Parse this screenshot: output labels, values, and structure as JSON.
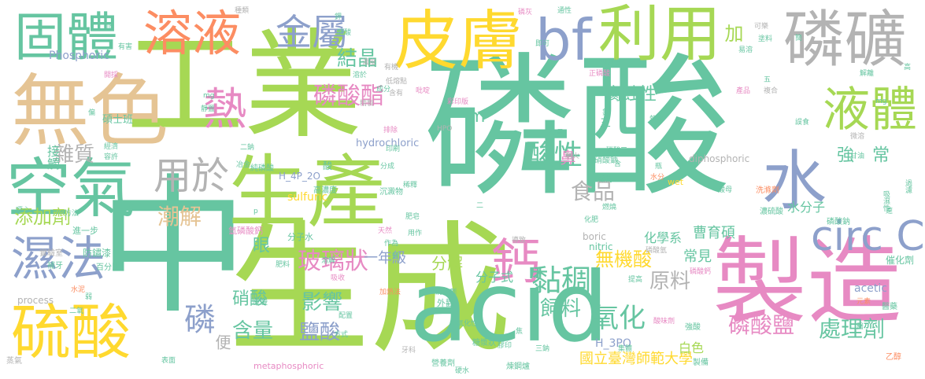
{
  "palette": {
    "teal": "#66c5a1",
    "green": "#a6d854",
    "yellow": "#ffd92f",
    "tan": "#e5c494",
    "gray": "#b3b3b3",
    "blue": "#8da0cb",
    "pink": "#e78ac3",
    "orange": "#fc8d62"
  },
  "words": [
    {
      "text": "磷酸",
      "color": "teal"
    },
    {
      "text": "工業",
      "color": "green"
    },
    {
      "text": "中",
      "color": "teal"
    },
    {
      "text": "生成",
      "color": "green"
    },
    {
      "text": "製造",
      "color": "pink"
    },
    {
      "text": "acid",
      "color": "teal"
    },
    {
      "text": "無色",
      "color": "tan"
    },
    {
      "text": "生產",
      "color": "green"
    },
    {
      "text": "空氣",
      "color": "teal"
    },
    {
      "text": "皮膚",
      "color": "yellow"
    },
    {
      "text": "利用",
      "color": "green"
    },
    {
      "text": "磷礦",
      "color": "gray"
    },
    {
      "text": "固體",
      "color": "teal"
    },
    {
      "text": "溶液",
      "color": "orange"
    },
    {
      "text": "硫酸",
      "color": "yellow"
    },
    {
      "text": "水",
      "color": "blue"
    },
    {
      "text": "熱",
      "color": "pink"
    },
    {
      "text": "bf",
      "color": "blue"
    },
    {
      "text": "金屬",
      "color": "blue"
    },
    {
      "text": "液體",
      "color": "green"
    },
    {
      "text": "用於",
      "color": "gray"
    },
    {
      "text": "濕法",
      "color": "blue"
    },
    {
      "text": "鈣",
      "color": "pink"
    },
    {
      "text": "circ C",
      "color": "blue"
    },
    {
      "text": "酸性",
      "color": "teal"
    },
    {
      "text": "磷酸酯",
      "color": "pink"
    },
    {
      "text": "結晶",
      "color": "teal"
    },
    {
      "text": "黏稠",
      "color": "teal"
    },
    {
      "text": "磷",
      "color": "blue"
    },
    {
      "text": "玻璃狀",
      "color": "pink"
    },
    {
      "text": "氧化",
      "color": "teal"
    },
    {
      "text": "影響",
      "color": "teal"
    },
    {
      "text": "潮解",
      "color": "tan"
    },
    {
      "text": "添加劑",
      "color": "green"
    },
    {
      "text": "雜質",
      "color": "gray"
    },
    {
      "text": "腐蝕性",
      "color": "teal"
    },
    {
      "text": "無機酸",
      "color": "yellow"
    },
    {
      "text": "食品",
      "color": "gray"
    },
    {
      "text": "飼料",
      "color": "teal"
    },
    {
      "text": "原料",
      "color": "gray"
    },
    {
      "text": "磷酸鹽",
      "color": "pink"
    },
    {
      "text": "處理劑",
      "color": "teal"
    },
    {
      "text": "含量",
      "color": "teal"
    },
    {
      "text": "鹽酸",
      "color": "blue"
    },
    {
      "text": "硝酸",
      "color": "teal"
    },
    {
      "text": "分解",
      "color": "green"
    },
    {
      "text": "加",
      "color": "green"
    },
    {
      "text": "m",
      "color": "teal"
    },
    {
      "text": "強",
      "color": "teal"
    },
    {
      "text": "常",
      "color": "teal"
    },
    {
      "text": "鼻",
      "color": "pink"
    },
    {
      "text": "一年級",
      "color": "blue"
    },
    {
      "text": "便",
      "color": "gray"
    },
    {
      "text": "眼",
      "color": "teal"
    },
    {
      "text": "曹育碩",
      "color": "teal"
    },
    {
      "text": "常見",
      "color": "teal"
    },
    {
      "text": "國立臺灣師範大學",
      "color": "yellow"
    },
    {
      "text": "H_3PO",
      "color": "blue"
    },
    {
      "text": "白色",
      "color": "green"
    },
    {
      "text": "化學系",
      "color": "teal"
    },
    {
      "text": "分子式",
      "color": "teal"
    },
    {
      "text": "水分子",
      "color": "teal"
    },
    {
      "text": "接觸",
      "color": "teal"
    },
    {
      "text": "Phosphoric",
      "color": "blue"
    },
    {
      "text": "hydrochloric",
      "color": "blue"
    },
    {
      "text": "sulfuric",
      "color": "yellow"
    },
    {
      "text": "H_4P_2O",
      "color": "blue"
    },
    {
      "text": "diphosphoric",
      "color": "gray"
    },
    {
      "text": "boric",
      "color": "gray"
    },
    {
      "text": "nitric",
      "color": "teal"
    },
    {
      "text": "acetic",
      "color": "blue"
    },
    {
      "text": "process",
      "color": "gray"
    },
    {
      "text": "metaphosphoric",
      "color": "pink"
    },
    {
      "text": "wet",
      "color": "yellow"
    },
    {
      "text": "HPO",
      "color": "gray"
    },
    {
      "text": "硝酸鈉",
      "color": "teal"
    },
    {
      "text": "碩士班",
      "color": "teal"
    },
    {
      "text": "實驗室",
      "color": "gray"
    },
    {
      "text": "防鏽漆",
      "color": "teal"
    },
    {
      "text": "高濃度",
      "color": "teal"
    },
    {
      "text": "氫磷酸鈣",
      "color": "pink"
    },
    {
      "text": "分子水",
      "color": "teal"
    },
    {
      "text": "催化劑",
      "color": "teal"
    },
    {
      "text": "製備",
      "color": "teal"
    },
    {
      "text": "乙醇",
      "color": "orange"
    },
    {
      "text": "磷酸鈉",
      "color": "teal"
    },
    {
      "text": "吸濕性",
      "color": "teal"
    },
    {
      "text": "過濾",
      "color": "teal"
    },
    {
      "text": "濃硫酸",
      "color": "teal"
    },
    {
      "text": "洗滌劑",
      "color": "orange"
    },
    {
      "text": "醫藥",
      "color": "teal"
    },
    {
      "text": "元素",
      "color": "orange"
    },
    {
      "text": "清洗劑",
      "color": "teal"
    },
    {
      "text": "沉澱物",
      "color": "teal"
    },
    {
      "text": "純磷酸",
      "color": "teal"
    },
    {
      "text": "蒸氣",
      "color": "gray"
    },
    {
      "text": "百分比",
      "color": "teal"
    },
    {
      "text": "補牙",
      "color": "teal"
    },
    {
      "text": "糖漿狀",
      "color": "teal"
    },
    {
      "text": "煉鋼爐",
      "color": "teal"
    },
    {
      "text": "營養劑",
      "color": "teal"
    },
    {
      "text": "加熱法",
      "color": "orange"
    },
    {
      "text": "牙科",
      "color": "gray"
    },
    {
      "text": "肥料",
      "color": "teal"
    },
    {
      "text": "吸收",
      "color": "pink"
    },
    {
      "text": "稀釋",
      "color": "teal"
    },
    {
      "text": "進一步",
      "color": "teal"
    },
    {
      "text": "水泥",
      "color": "orange"
    },
    {
      "text": "二氧",
      "color": "teal"
    },
    {
      "text": "弱",
      "color": "teal"
    },
    {
      "text": "方式",
      "color": "teal"
    },
    {
      "text": "表面",
      "color": "teal"
    },
    {
      "text": "磷酸氫",
      "color": "gray"
    },
    {
      "text": "導致",
      "color": "gray"
    },
    {
      "text": "磷酸三",
      "color": "teal"
    },
    {
      "text": "精製",
      "color": "gray"
    },
    {
      "text": "排除",
      "color": "pink"
    },
    {
      "text": "印刷",
      "color": "teal"
    },
    {
      "text": "分成",
      "color": "teal"
    },
    {
      "text": "配置",
      "color": "teal"
    },
    {
      "text": "正磷酸",
      "color": "pink"
    },
    {
      "text": "彩印版",
      "color": "pink"
    },
    {
      "text": "少量",
      "color": "teal"
    },
    {
      "text": "耐火",
      "color": "gray"
    },
    {
      "text": "可樂",
      "color": "gray"
    },
    {
      "text": "塗料",
      "color": "teal"
    },
    {
      "text": "易溶",
      "color": "teal"
    },
    {
      "text": "產品",
      "color": "pink"
    },
    {
      "text": "複合",
      "color": "gray"
    },
    {
      "text": "制激性",
      "color": "teal"
    },
    {
      "text": "醋酸",
      "color": "teal"
    },
    {
      "text": "濃度",
      "color": "gray"
    },
    {
      "text": "低熔點",
      "color": "gray"
    },
    {
      "text": "有機",
      "color": "gray"
    },
    {
      "text": "溶於",
      "color": "teal"
    },
    {
      "text": "開採",
      "color": "pink"
    },
    {
      "text": "經濟",
      "color": "teal"
    },
    {
      "text": "容許",
      "color": "teal"
    },
    {
      "text": "通性",
      "color": "teal"
    },
    {
      "text": "磷灰",
      "color": "pink"
    },
    {
      "text": "即可",
      "color": "teal"
    },
    {
      "text": "種類",
      "color": "gray"
    },
    {
      "text": "有害",
      "color": "teal"
    },
    {
      "text": "吡啶",
      "color": "pink"
    },
    {
      "text": "外觀",
      "color": "teal"
    },
    {
      "text": "強酸",
      "color": "teal"
    },
    {
      "text": "氧化性",
      "color": "teal"
    },
    {
      "text": "酸味劑",
      "color": "pink"
    },
    {
      "text": "提高",
      "color": "teal"
    },
    {
      "text": "天然",
      "color": "pink"
    },
    {
      "text": "肥皂",
      "color": "teal"
    },
    {
      "text": "作為",
      "color": "teal"
    },
    {
      "text": "做為",
      "color": "teal"
    },
    {
      "text": "甘油",
      "color": "teal"
    },
    {
      "text": "微溶",
      "color": "gray"
    },
    {
      "text": "慢慢",
      "color": "teal"
    },
    {
      "text": "膠印",
      "color": "teal"
    },
    {
      "text": "集體",
      "color": "teal"
    },
    {
      "text": "焦",
      "color": "teal"
    },
    {
      "text": "三鈉",
      "color": "teal"
    },
    {
      "text": "二鈉",
      "color": "teal"
    },
    {
      "text": "用作",
      "color": "teal"
    },
    {
      "text": "水分",
      "color": "orange"
    },
    {
      "text": "熱水",
      "color": "teal"
    },
    {
      "text": "硬水",
      "color": "teal"
    },
    {
      "text": "燃燒",
      "color": "teal"
    },
    {
      "text": "冶金",
      "color": "teal"
    },
    {
      "text": "噁心",
      "color": "teal"
    },
    {
      "text": "mg",
      "color": "teal"
    },
    {
      "text": "p",
      "color": "teal"
    },
    {
      "text": "mg",
      "color": "teal"
    },
    {
      "text": "靜置",
      "color": "teal"
    },
    {
      "text": "鋅",
      "color": "teal"
    },
    {
      "text": "解離",
      "color": "teal"
    },
    {
      "text": "正",
      "color": "teal"
    },
    {
      "text": "五",
      "color": "teal"
    },
    {
      "text": "二",
      "color": "teal"
    },
    {
      "text": "瓶",
      "color": "teal"
    },
    {
      "text": "溶解",
      "color": "teal"
    },
    {
      "text": "醫",
      "color": "teal"
    },
    {
      "text": "速",
      "color": "teal"
    },
    {
      "text": "高",
      "color": "teal"
    },
    {
      "text": "酸",
      "color": "teal"
    },
    {
      "text": "氯",
      "color": "teal"
    },
    {
      "text": "方法",
      "color": "teal"
    },
    {
      "text": "化肥",
      "color": "teal"
    },
    {
      "text": "酸母",
      "color": "teal"
    },
    {
      "text": "誤食",
      "color": "teal"
    },
    {
      "text": "簡",
      "color": "teal"
    },
    {
      "text": "含有",
      "color": "gray"
    },
    {
      "text": "成分",
      "color": "teal"
    },
    {
      "text": "含",
      "color": "teal"
    },
    {
      "text": "磷酸鈣",
      "color": "pink"
    },
    {
      "text": "三",
      "color": "teal"
    },
    {
      "text": "偏",
      "color": "teal"
    },
    {
      "text": "鉀",
      "color": "teal"
    }
  ]
}
